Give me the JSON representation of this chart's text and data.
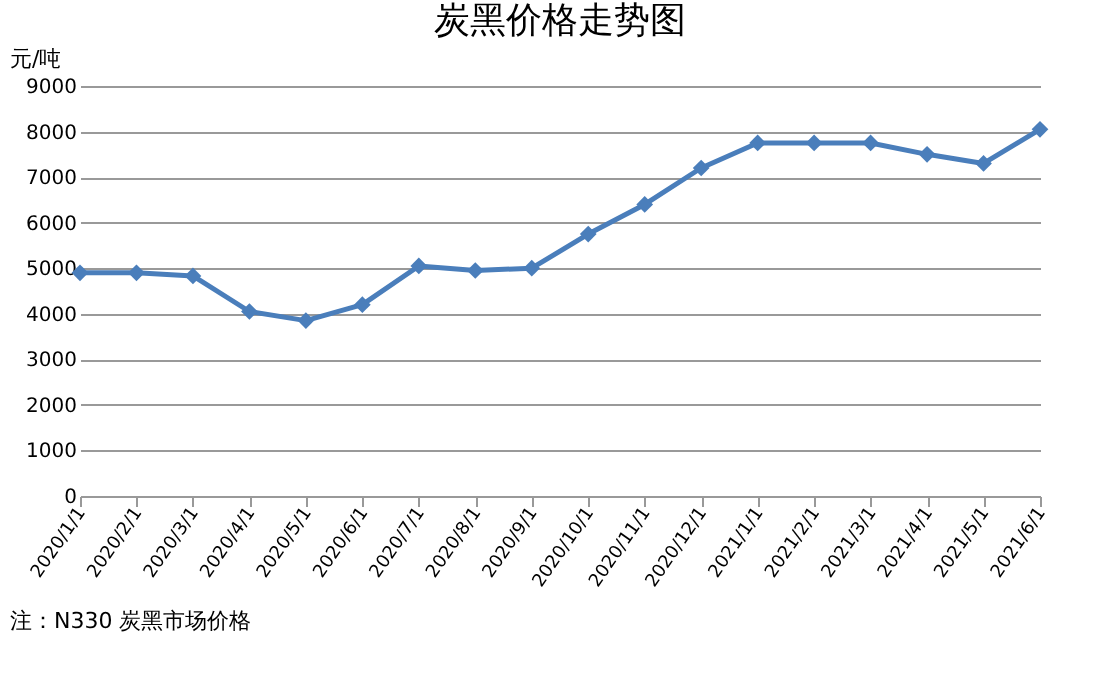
{
  "chart_data": {
    "type": "line",
    "title": "炭黑价格走势图",
    "ylabel": "元/吨",
    "categories": [
      "2020/1/1",
      "2020/2/1",
      "2020/3/1",
      "2020/4/1",
      "2020/5/1",
      "2020/6/1",
      "2020/7/1",
      "2020/8/1",
      "2020/9/1",
      "2020/10/1",
      "2020/11/1",
      "2020/12/1",
      "2021/1/1",
      "2021/2/1",
      "2021/3/1",
      "2021/4/1",
      "2021/5/1",
      "2021/6/1"
    ],
    "series": [
      {
        "color": "#4a7ebb",
        "values": [
          4900,
          4900,
          4830,
          4050,
          3850,
          4200,
          5050,
          4950,
          5000,
          5750,
          6400,
          7200,
          7750,
          7750,
          7750,
          7500,
          7300,
          8050
        ]
      }
    ],
    "ylim": [
      0,
      9000
    ],
    "yticks": [
      0,
      1000,
      2000,
      3000,
      4000,
      5000,
      6000,
      7000,
      8000,
      9000
    ],
    "grid": "y",
    "marker": "diamond",
    "line_style": "solid",
    "annotations": [
      "注：N330 炭黑市场价格"
    ]
  }
}
